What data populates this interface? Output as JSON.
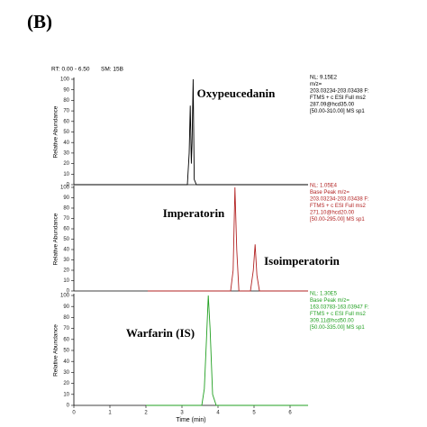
{
  "panel_label": "(B)",
  "range_text": "RT: 0.00 - 6.50",
  "smoothing_text": "SM: 15B",
  "chart_data": [
    {
      "type": "line",
      "annotation": "Oxypeucedanin",
      "ylabel": "Relative Abundance",
      "info": [
        "NL: 9.15E2",
        "m/z=",
        "203.03234-203.03438 F:",
        "FTMS + c ESI Full ms2",
        "287.09@hcd35.00",
        "[50.00-310.00]  MS sp1"
      ],
      "color": "#000000",
      "xlim": [
        0,
        6.5
      ],
      "ylim": [
        0,
        100
      ],
      "yticks": [
        0,
        10,
        20,
        30,
        40,
        50,
        60,
        70,
        80,
        90,
        100
      ],
      "x": [
        0,
        3.15,
        3.2,
        3.23,
        3.26,
        3.28,
        3.31,
        3.34,
        3.4,
        6.5
      ],
      "values": [
        0,
        0,
        30,
        75,
        20,
        40,
        100,
        5,
        0,
        0
      ]
    },
    {
      "type": "line",
      "annotation": "Imperatorin",
      "annotation2": "Isoimperatorin",
      "ylabel": "Relative Abundance",
      "info": [
        "NL: 1.05E4",
        "Base Peak m/z=",
        "203.03234-203.03438 F:",
        "FTMS + c ESI Full ms2",
        "271.10@hcd20.00",
        "[50.00-295.00]  MS sp1"
      ],
      "color": "#b22222",
      "xlim": [
        0,
        6.5
      ],
      "ylim": [
        0,
        100
      ],
      "yticks": [
        0,
        10,
        20,
        30,
        40,
        50,
        60,
        70,
        80,
        90,
        100
      ],
      "x": [
        2.05,
        4.35,
        4.42,
        4.47,
        4.52,
        4.58,
        4.9,
        4.98,
        5.03,
        5.08,
        5.15,
        6.5
      ],
      "values": [
        0,
        0,
        20,
        100,
        40,
        0,
        0,
        20,
        45,
        15,
        0,
        0
      ]
    },
    {
      "type": "line",
      "annotation": "Warfarin (IS)",
      "ylabel": "Relative Abundance",
      "xlabel": "Time (min)",
      "info": [
        "NL: 1.30E5",
        "Base Peak m/z=",
        "163.03783-163.03947 F:",
        "FTMS + c ESI Full ms2",
        "309.11@hcd50.00",
        "[50.00-335.00]  MS sp1"
      ],
      "color": "#22a022",
      "xlim": [
        0,
        6.5
      ],
      "ylim": [
        0,
        100
      ],
      "yticks": [
        0,
        10,
        20,
        30,
        40,
        50,
        60,
        70,
        80,
        90,
        100
      ],
      "xticks": [
        0,
        1,
        2,
        3,
        4,
        5,
        6
      ],
      "x": [
        2.0,
        3.55,
        3.62,
        3.68,
        3.73,
        3.78,
        3.85,
        3.95,
        6.5
      ],
      "values": [
        0,
        0,
        15,
        60,
        100,
        70,
        10,
        0,
        0
      ]
    }
  ]
}
